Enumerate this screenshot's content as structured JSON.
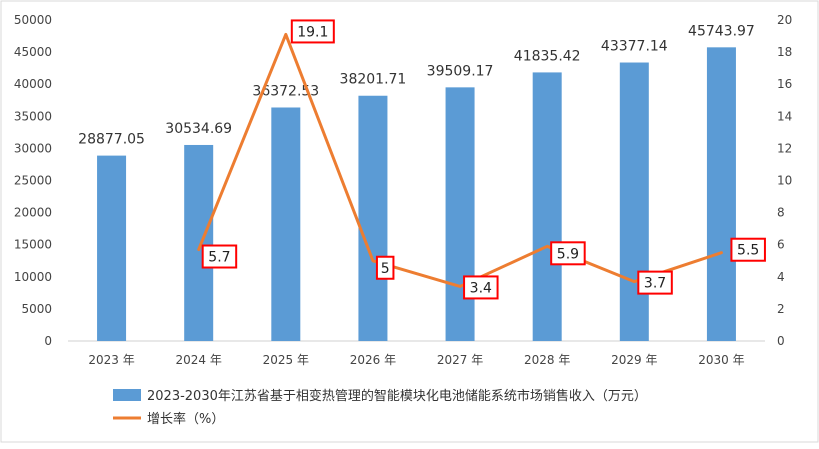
{
  "chart_data": {
    "type": "bar",
    "categories": [
      "2023 年",
      "2024 年",
      "2025 年",
      "2026 年",
      "2027 年",
      "2028 年",
      "2029 年",
      "2030 年"
    ],
    "series": [
      {
        "name": "2023-2030年江苏省基于相变热管理的智能模块化电池储能系统市场销售收入（万元）",
        "type": "bar",
        "axis": "left",
        "color": "#5b9bd5",
        "values": [
          28877.05,
          30534.69,
          36372.53,
          38201.71,
          39509.17,
          41835.42,
          43377.14,
          45743.97
        ],
        "labels": [
          "28877.05",
          "30534.69",
          "36372.53",
          "38201.71",
          "39509.17",
          "41835.42",
          "43377.14",
          "45743.97"
        ]
      },
      {
        "name": "增长率（%）",
        "type": "line",
        "axis": "right",
        "color": "#ed7d31",
        "values": [
          null,
          5.7,
          19.1,
          5,
          3.4,
          5.9,
          3.7,
          5.5
        ],
        "labels": [
          "",
          "5.7",
          "19.1",
          "5",
          "3.4",
          "5.9",
          "3.7",
          "5.5"
        ]
      }
    ],
    "y_left": {
      "min": 0,
      "max": 50000,
      "step": 5000,
      "ticks": [
        "0",
        "5000",
        "10000",
        "15000",
        "20000",
        "25000",
        "30000",
        "35000",
        "40000",
        "45000",
        "50000"
      ]
    },
    "y_right": {
      "min": 0,
      "max": 20,
      "step": 2,
      "ticks": [
        "0",
        "2",
        "4",
        "6",
        "8",
        "10",
        "12",
        "14",
        "16",
        "18",
        "20"
      ]
    },
    "grid": false,
    "legend_position": "bottom-left",
    "label_box_color": "#ff0000"
  }
}
